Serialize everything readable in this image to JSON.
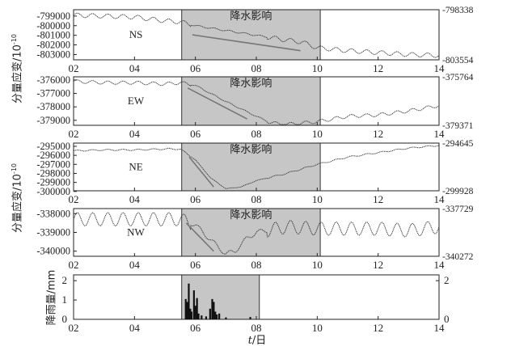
{
  "chart_data": {
    "type": "line",
    "xlabel_var": "t",
    "xlabel": "/日",
    "x_ticks": [
      "02",
      "04",
      "06",
      "08",
      "10",
      "12",
      "14"
    ],
    "xlim": [
      2,
      14
    ],
    "panels": [
      {
        "name": "NS",
        "ylabel": "分量应变/10",
        "ylabel_exp": "-10",
        "y_ticks": [
          "-799000",
          "-800000",
          "-801000",
          "-802000",
          "-803000"
        ],
        "ylim": [
          -803554,
          -798338
        ],
        "right_labels": [
          "-798338",
          "-803554"
        ],
        "shade_label": "降水影响",
        "shade": [
          5.55,
          10.1
        ],
        "trend_line": [
          [
            5.9,
            -800950
          ],
          [
            9.45,
            -802600
          ]
        ],
        "series": [
          {
            "x": 2.0,
            "y": -798900
          },
          {
            "x": 3.0,
            "y": -799000
          },
          {
            "x": 4.0,
            "y": -799100
          },
          {
            "x": 5.0,
            "y": -799500
          },
          {
            "x": 5.5,
            "y": -799600
          },
          {
            "x": 6.0,
            "y": -800000
          },
          {
            "x": 7.0,
            "y": -800500
          },
          {
            "x": 8.0,
            "y": -801000
          },
          {
            "x": 9.0,
            "y": -801500
          },
          {
            "x": 9.5,
            "y": -801700
          },
          {
            "x": 10.0,
            "y": -802300
          },
          {
            "x": 11.0,
            "y": -802600
          },
          {
            "x": 12.0,
            "y": -802800
          },
          {
            "x": 13.0,
            "y": -803000
          },
          {
            "x": 14.0,
            "y": -803100
          }
        ],
        "amplitude": 220,
        "period": 0.5
      },
      {
        "name": "EW",
        "ylabel": "",
        "ylabel_exp": "",
        "y_ticks": [
          "-376000",
          "-377000",
          "-378000",
          "-379000"
        ],
        "ylim": [
          -379371,
          -375764
        ],
        "right_labels": [
          "-375764",
          "-379371"
        ],
        "shade_label": "降水影响",
        "shade": [
          5.55,
          10.1
        ],
        "trend_line": [
          [
            5.75,
            -376600
          ],
          [
            7.7,
            -378900
          ]
        ],
        "series": [
          {
            "x": 2.0,
            "y": -376100
          },
          {
            "x": 3.0,
            "y": -376200
          },
          {
            "x": 4.0,
            "y": -376200
          },
          {
            "x": 5.0,
            "y": -376300
          },
          {
            "x": 5.5,
            "y": -376200
          },
          {
            "x": 6.0,
            "y": -376400
          },
          {
            "x": 7.0,
            "y": -377600
          },
          {
            "x": 8.0,
            "y": -378700
          },
          {
            "x": 8.5,
            "y": -379200
          },
          {
            "x": 9.0,
            "y": -379300
          },
          {
            "x": 10.0,
            "y": -379100
          },
          {
            "x": 11.0,
            "y": -378700
          },
          {
            "x": 12.0,
            "y": -378600
          },
          {
            "x": 13.0,
            "y": -378300
          },
          {
            "x": 14.0,
            "y": -377900
          }
        ],
        "amplitude": 120,
        "period": 0.5
      },
      {
        "name": "NE",
        "ylabel": "分量应变/10",
        "ylabel_exp": "-10",
        "y_ticks": [
          "-295000",
          "-296000",
          "-297000",
          "-298000",
          "-299000",
          "-300000"
        ],
        "ylim": [
          -299928,
          -294645
        ],
        "right_labels": [
          "-294645",
          "-299928"
        ],
        "shade_label": "降水影响",
        "shade": [
          5.55,
          10.1
        ],
        "trend_line": [
          [
            5.8,
            -296200
          ],
          [
            6.6,
            -299500
          ]
        ],
        "series": [
          {
            "x": 2.0,
            "y": -295500
          },
          {
            "x": 3.0,
            "y": -295400
          },
          {
            "x": 4.0,
            "y": -295400
          },
          {
            "x": 5.0,
            "y": -295300
          },
          {
            "x": 5.5,
            "y": -295300
          },
          {
            "x": 6.0,
            "y": -296500
          },
          {
            "x": 6.5,
            "y": -298500
          },
          {
            "x": 7.0,
            "y": -299700
          },
          {
            "x": 7.5,
            "y": -299500
          },
          {
            "x": 8.0,
            "y": -298800
          },
          {
            "x": 9.0,
            "y": -298000
          },
          {
            "x": 10.0,
            "y": -297000
          },
          {
            "x": 11.0,
            "y": -296200
          },
          {
            "x": 12.0,
            "y": -295700
          },
          {
            "x": 13.0,
            "y": -295200
          },
          {
            "x": 14.0,
            "y": -294900
          }
        ],
        "amplitude": 70,
        "period": 0.5
      },
      {
        "name": "NW",
        "ylabel": "",
        "ylabel_exp": "",
        "y_ticks": [
          "-338000",
          "-339000",
          "-340000"
        ],
        "ylim": [
          -340272,
          -337729
        ],
        "right_labels": [
          "-337729",
          "-340272"
        ],
        "shade_label": "降水影响",
        "shade": [
          5.55,
          10.1
        ],
        "trend_line": [
          [
            5.7,
            -338500
          ],
          [
            6.6,
            -340000
          ]
        ],
        "series": [
          {
            "x": 2.0,
            "y": -338300
          },
          {
            "x": 3.0,
            "y": -338300
          },
          {
            "x": 4.0,
            "y": -338300
          },
          {
            "x": 5.0,
            "y": -338300
          },
          {
            "x": 5.5,
            "y": -338300
          },
          {
            "x": 6.0,
            "y": -338600
          },
          {
            "x": 6.5,
            "y": -339400
          },
          {
            "x": 7.0,
            "y": -340150
          },
          {
            "x": 7.3,
            "y": -340000
          },
          {
            "x": 7.7,
            "y": -339300
          },
          {
            "x": 8.0,
            "y": -339000
          },
          {
            "x": 9.0,
            "y": -338700
          },
          {
            "x": 10.0,
            "y": -338800
          },
          {
            "x": 11.0,
            "y": -338800
          },
          {
            "x": 12.0,
            "y": -338800
          },
          {
            "x": 13.0,
            "y": -338900
          },
          {
            "x": 14.0,
            "y": -338700
          }
        ],
        "amplitude": 350,
        "period": 0.5
      },
      {
        "name": "rainfall",
        "type": "bar",
        "ylabel": "降雨量/mm",
        "y_ticks": [
          "0",
          "1",
          "2"
        ],
        "ylim": [
          0,
          2.3
        ],
        "right_ticks": [
          "0",
          "2"
        ],
        "shade": [
          5.55,
          8.1
        ],
        "bars": [
          {
            "x": 5.68,
            "y": 1.05
          },
          {
            "x": 5.73,
            "y": 0.9
          },
          {
            "x": 5.78,
            "y": 1.85
          },
          {
            "x": 5.83,
            "y": 0.55
          },
          {
            "x": 5.87,
            "y": 0.4
          },
          {
            "x": 5.95,
            "y": 1.5
          },
          {
            "x": 6.0,
            "y": 0.7
          },
          {
            "x": 6.05,
            "y": 1.1
          },
          {
            "x": 6.1,
            "y": 0.3
          },
          {
            "x": 6.2,
            "y": 0.2
          },
          {
            "x": 6.35,
            "y": 0.15
          },
          {
            "x": 6.48,
            "y": 0.55
          },
          {
            "x": 6.55,
            "y": 1.05
          },
          {
            "x": 6.6,
            "y": 0.9
          },
          {
            "x": 6.65,
            "y": 0.4
          },
          {
            "x": 6.7,
            "y": 0.25
          },
          {
            "x": 6.78,
            "y": 0.3
          },
          {
            "x": 7.0,
            "y": 0.1
          },
          {
            "x": 7.8,
            "y": 0.12
          }
        ]
      }
    ]
  }
}
